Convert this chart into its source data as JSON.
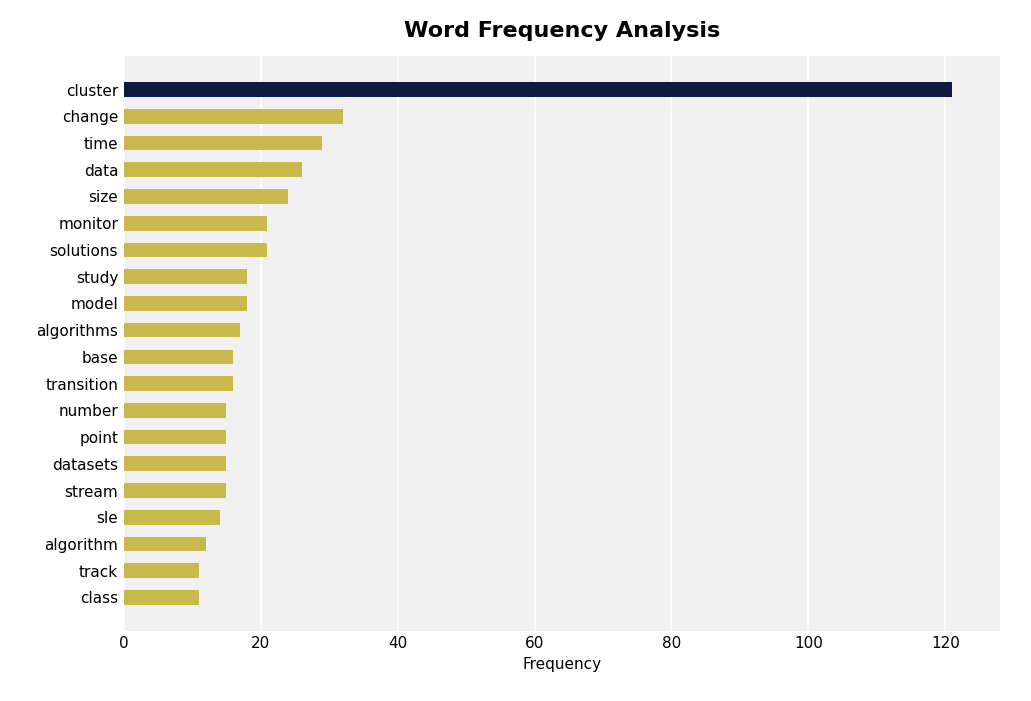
{
  "title": "Word Frequency Analysis",
  "xlabel": "Frequency",
  "categories": [
    "cluster",
    "change",
    "time",
    "data",
    "size",
    "monitor",
    "solutions",
    "study",
    "model",
    "algorithms",
    "base",
    "transition",
    "number",
    "point",
    "datasets",
    "stream",
    "sle",
    "algorithm",
    "track",
    "class"
  ],
  "values": [
    121,
    32,
    29,
    26,
    24,
    21,
    21,
    18,
    18,
    17,
    16,
    16,
    15,
    15,
    15,
    15,
    14,
    12,
    11,
    11
  ],
  "bar_color_cluster": "#0d1b3e",
  "bar_color_others": "#c9b84c",
  "figure_background": "#ffffff",
  "plot_background": "#f0f0f0",
  "title_fontsize": 16,
  "axis_fontsize": 11,
  "tick_fontsize": 11,
  "xlim": [
    0,
    128
  ],
  "xticks": [
    0,
    20,
    40,
    60,
    80,
    100,
    120
  ]
}
